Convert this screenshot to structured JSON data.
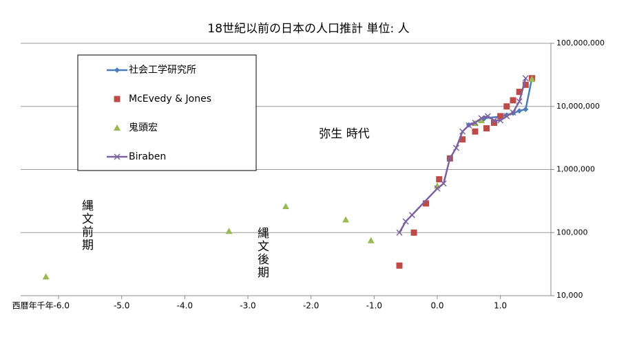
{
  "chart_data": {
    "type": "line",
    "title": "18世紀以前の日本の人口推計 単位: 人",
    "log_y": true,
    "grid": true,
    "y_axis_side": "right",
    "legend_position": "upper left",
    "xlim": [
      -6.6,
      1.8
    ],
    "xticks": [
      {
        "value": -6,
        "label": "西暦年千年-6.0"
      },
      {
        "value": -5,
        "label": "-5.0"
      },
      {
        "value": -4,
        "label": "-4.0"
      },
      {
        "value": -3,
        "label": "-3.0"
      },
      {
        "value": -2,
        "label": "-2.0"
      },
      {
        "value": -1,
        "label": "-1.0"
      },
      {
        "value": 0,
        "label": "0.0"
      },
      {
        "value": 1,
        "label": "1.0"
      }
    ],
    "ylim": [
      10000,
      100000000
    ],
    "yticks": [
      {
        "value": 10000,
        "label": "10,000"
      },
      {
        "value": 100000,
        "label": "100,000"
      },
      {
        "value": 1000000,
        "label": "1,000,000"
      },
      {
        "value": 10000000,
        "label": "10,000,000"
      },
      {
        "value": 100000000,
        "label": "100,000,000"
      }
    ],
    "annotations": [
      "弥生 時代",
      "縄文前期",
      "縄文後期"
    ],
    "series": [
      {
        "name": "社会工学研究所",
        "color": "#4a7ebb",
        "marker": "diamond",
        "line": true,
        "x": [
          0.5,
          0.75,
          1.0,
          1.1,
          1.2,
          1.3,
          1.4,
          1.5
        ],
        "values": [
          5100000,
          6500000,
          6900000,
          7300000,
          7800000,
          8500000,
          9000000,
          28000000
        ]
      },
      {
        "name": "McEvedy & Jones",
        "color": "#be4b48",
        "marker": "square",
        "line": false,
        "x": [
          -0.6,
          -0.37,
          -0.18,
          0.03,
          0.2,
          0.4,
          0.6,
          0.78,
          0.9,
          1.0,
          1.1,
          1.2,
          1.3,
          1.4,
          1.5
        ],
        "values": [
          30000,
          100000,
          290000,
          700000,
          1500000,
          3000000,
          4000000,
          4500000,
          5500000,
          7000000,
          10000000,
          12500000,
          17000000,
          22000000,
          28000000
        ]
      },
      {
        "name": "鬼頭宏",
        "color": "#98b954",
        "marker": "triangle",
        "line": false,
        "x": [
          -6.2,
          -3.3,
          -2.4,
          -1.45,
          -1.05,
          0.0,
          0.6,
          0.7,
          1.5
        ],
        "values": [
          20000,
          105000,
          260000,
          160000,
          75000,
          550000,
          5400000,
          6000000,
          27000000
        ]
      },
      {
        "name": "Biraben",
        "color": "#7d60a0",
        "marker": "x",
        "line": true,
        "x": [
          -0.6,
          -0.5,
          -0.4,
          0.0,
          0.1,
          0.2,
          0.3,
          0.4,
          0.5,
          0.6,
          0.7,
          0.8,
          0.9,
          1.0,
          1.1,
          1.2,
          1.3,
          1.4
        ],
        "values": [
          100000,
          150000,
          190000,
          500000,
          600000,
          1500000,
          2200000,
          4000000,
          5000000,
          5500000,
          6500000,
          7000000,
          6000000,
          6000000,
          7000000,
          8000000,
          12000000,
          28000000
        ]
      }
    ]
  }
}
